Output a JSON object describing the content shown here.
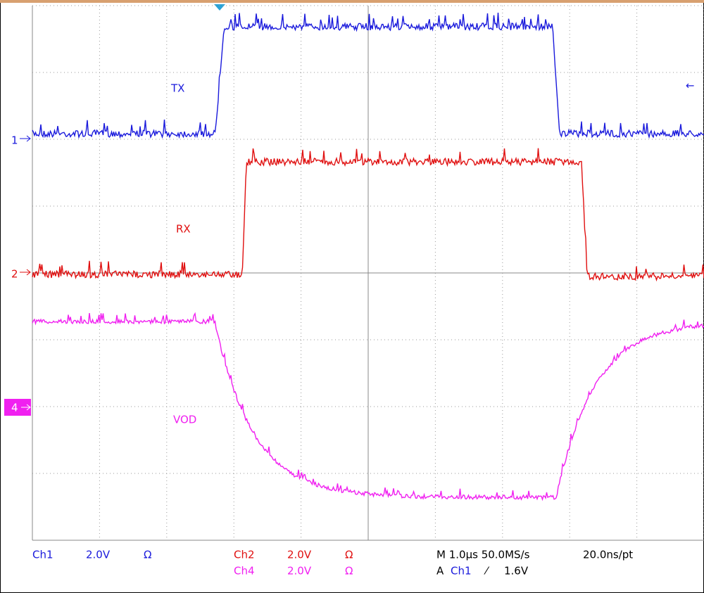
{
  "traces": {
    "tx": "TX",
    "rx": "RX",
    "vod": "VOD"
  },
  "markers": {
    "ch1": "1",
    "ch2": "2",
    "ch4": "4",
    "trigger_level": "←"
  },
  "readout": {
    "ch1": {
      "name": "Ch1",
      "scale": "2.0V",
      "coupling": "Ω"
    },
    "ch2": {
      "name": "Ch2",
      "scale": "2.0V",
      "coupling": "Ω"
    },
    "ch4": {
      "name": "Ch4",
      "scale": "2.0V",
      "coupling": "Ω"
    },
    "timebase": "M 1.0µs 50.0MS/s",
    "resolution": "20.0ns/pt",
    "trigger": {
      "mode": "A",
      "source": "Ch1",
      "slope": "⁄",
      "level": "1.6V"
    }
  }
}
